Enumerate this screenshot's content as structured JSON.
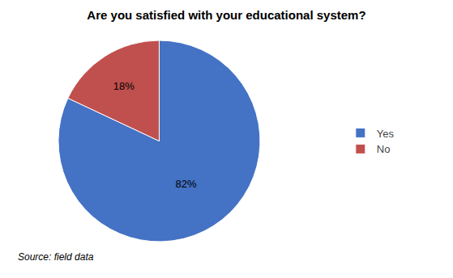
{
  "chart_data": {
    "type": "pie",
    "title": "Are you satisfied with your educational system?",
    "categories": [
      "Yes",
      "No"
    ],
    "values": [
      82,
      18
    ],
    "value_labels": [
      "82%",
      "18%"
    ],
    "colors": [
      "#4472C4",
      "#C0504D"
    ],
    "data_labels": true,
    "legend": "right",
    "annotations": [
      "Source: field data"
    ]
  }
}
